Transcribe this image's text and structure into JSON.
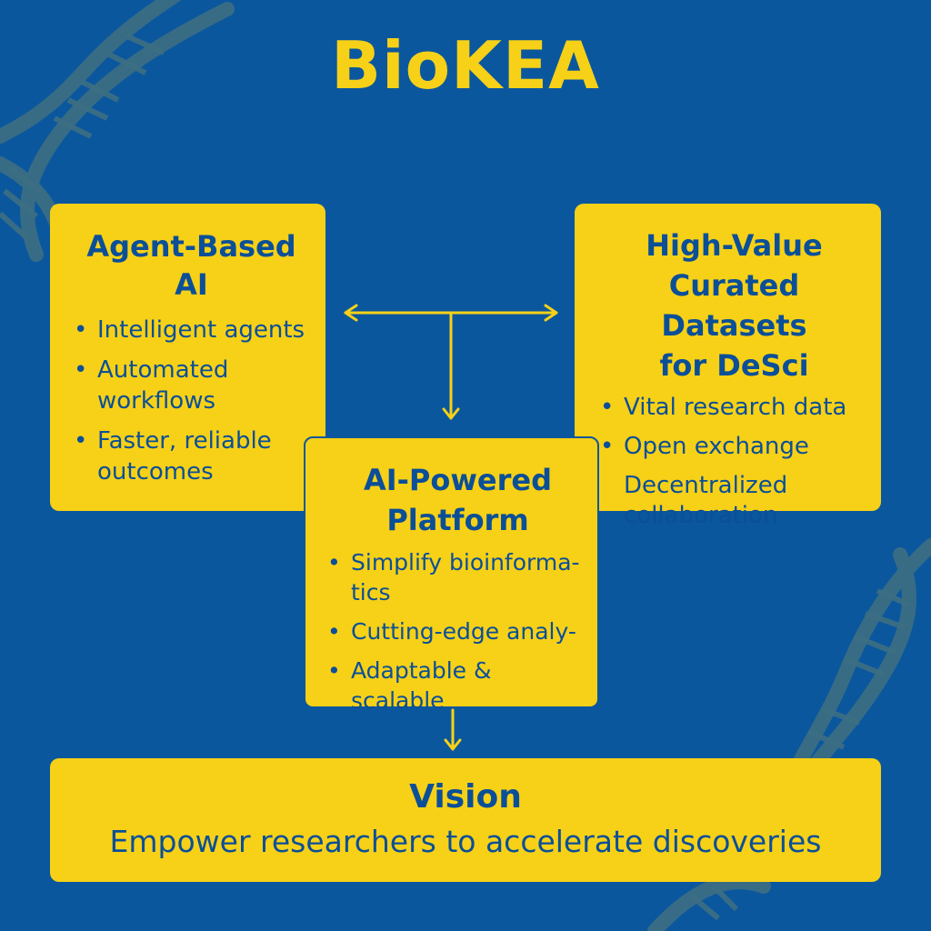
{
  "title": "BioKEA",
  "colors": {
    "background": "#0b579e",
    "box_fill": "#f7d117",
    "text": "#0b4f98",
    "dna": "#3d6f83"
  },
  "boxes": {
    "agent": {
      "title_line1": "Agent-Based",
      "title_line2": "AI",
      "items": [
        {
          "line1": "Intelligent agents"
        },
        {
          "line1": "Automated",
          "line2": "workflows"
        },
        {
          "line1": "Faster, reliable",
          "line2": "outcomes"
        }
      ]
    },
    "datasets": {
      "title_line1": "High-Value",
      "title_line2": "Curated Datasets",
      "title_line3": "for DeSci",
      "items": [
        {
          "line1": "Vital research data"
        },
        {
          "line1": "Open exchange"
        },
        {
          "line1": "Decentralized",
          "line2": "collaboration"
        }
      ]
    },
    "platform": {
      "title_line1": "AI-Powered",
      "title_line2": "Platform",
      "items": [
        {
          "line1": "Simplify bioinforma-",
          "line2": "tics"
        },
        {
          "line1": "Cutting-edge analy-"
        },
        {
          "line1": "Adaptable & scalable"
        }
      ]
    },
    "vision": {
      "title": "Vision",
      "text": "Empower researchers to accelerate discoveries"
    }
  },
  "bullet_char": "•"
}
